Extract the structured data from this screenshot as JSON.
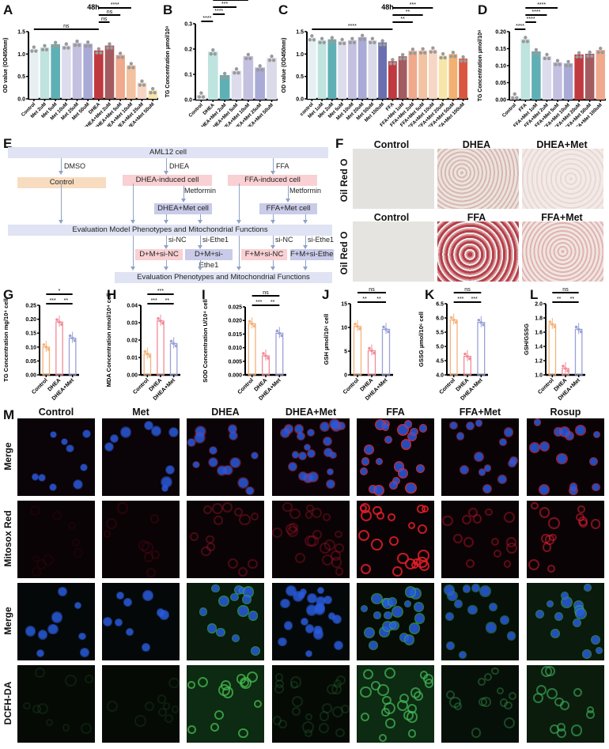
{
  "panels": {
    "A": "A",
    "B": "B",
    "C": "C",
    "D": "D",
    "E": "E",
    "F": "F",
    "G": "G",
    "H": "H",
    "I": "I",
    "J": "J",
    "K": "K",
    "L": "L",
    "M": "M"
  },
  "chart_data": [
    {
      "id": "A",
      "type": "bar",
      "title": "48h",
      "ylabel": "OD value (OD450nm)",
      "ylim": [
        0,
        1.5
      ],
      "yticks": [
        "0.0",
        "0.5",
        "1.0",
        "1.5"
      ],
      "categories": [
        "Control",
        "Met 2uM",
        "Met 5uM",
        "Met 10uM",
        "Met 25uM",
        "Met 50uM",
        "DHEA",
        "DHEA+Met 2uM",
        "DHEA+Met 5uM",
        "DHEA+Met 10uM",
        "DHEA+Met 25uM",
        "DHEA+Met 50uM"
      ],
      "values": [
        1.12,
        1.15,
        1.22,
        1.19,
        1.25,
        1.23,
        1.08,
        1.19,
        0.98,
        0.75,
        0.36,
        0.19
      ],
      "colors": [
        "#e6f0f3",
        "#bfe3df",
        "#5fb0b4",
        "#dcdcec",
        "#c4c0e0",
        "#a9aad6",
        "#c0393f",
        "#a45b60",
        "#f0a98c",
        "#f3c2a0",
        "#f7d6c6",
        "#f7e6a8"
      ],
      "significance": [
        {
          "from": 0,
          "to": 6,
          "label": "ns"
        },
        {
          "from": 6,
          "to": 7,
          "label": "ns"
        },
        {
          "from": 6,
          "to": 8,
          "label": "ns"
        },
        {
          "from": 6,
          "to": 9,
          "label": "****"
        }
      ]
    },
    {
      "id": "B",
      "type": "bar",
      "title": "",
      "ylabel": "TG Concentration µmol/10⁸",
      "ylim": [
        0,
        0.3
      ],
      "yticks": [
        "0.0",
        "0.1",
        "0.2",
        "0.3"
      ],
      "categories": [
        "Control",
        "DHEA",
        "DHEA+Met 2uM",
        "DHEA+Met 5uM",
        "DHEA+Met 10uM",
        "DHEA+Met 25uM",
        "DHEA+Met 50uM"
      ],
      "values": [
        0.02,
        0.19,
        0.097,
        0.115,
        0.172,
        0.127,
        0.165
      ],
      "colors": [
        "#e8edf2",
        "#bfe3df",
        "#5fb0b4",
        "#dcdcec",
        "#c4c0e0",
        "#a9aad6",
        "#d9dbe8"
      ],
      "significance": [
        {
          "from": 0,
          "to": 1,
          "label": "****"
        },
        {
          "from": 1,
          "to": 2,
          "label": "****"
        },
        {
          "from": 1,
          "to": 3,
          "label": "***"
        },
        {
          "from": 1,
          "to": 4,
          "label": "ns"
        }
      ]
    },
    {
      "id": "C",
      "type": "bar",
      "title": "48h",
      "ylabel": "OD value (OD450nm)",
      "ylim": [
        0,
        1.5
      ],
      "yticks": [
        "0.0",
        "0.5",
        "1.0",
        "1.5"
      ],
      "categories": [
        "control",
        "Met 1uM",
        "Met 2uM",
        "Met 5uM",
        "Met 10uM",
        "Met 20uM",
        "Met 50uM",
        "Met 100uM",
        "FFA",
        "FFA+Met 1uM",
        "FFA+Met 2uM",
        "FFA+Met 5uM",
        "FFA+Met 10uM",
        "FFA+Met 20uM",
        "FFA+Met 50uM",
        "FFA+Met 100uM"
      ],
      "values": [
        1.37,
        1.31,
        1.33,
        1.29,
        1.31,
        1.38,
        1.31,
        1.26,
        0.84,
        0.95,
        1.07,
        1.08,
        1.1,
        0.97,
        1.0,
        0.9
      ],
      "colors": [
        "#e6f0f3",
        "#bfe3df",
        "#5fb0b4",
        "#dcdcec",
        "#c4c0e0",
        "#a9aad6",
        "#d9dbe8",
        "#6a6fb0",
        "#c0393f",
        "#a45b60",
        "#f0a98c",
        "#f3c2a0",
        "#f7d6c6",
        "#f7e6a8",
        "#f3b070",
        "#d9573f"
      ],
      "significance": [
        {
          "from": 0,
          "to": 8,
          "label": "****"
        },
        {
          "from": 8,
          "to": 10,
          "label": "**"
        },
        {
          "from": 8,
          "to": 11,
          "label": "**"
        },
        {
          "from": 8,
          "to": 12,
          "label": "***"
        }
      ]
    },
    {
      "id": "D",
      "type": "bar",
      "title": "",
      "ylabel": "TG Concentration µmol/10⁸",
      "ylim": [
        0,
        0.2
      ],
      "yticks": [
        "0.00",
        "0.05",
        "0.10",
        "0.15",
        "0.20"
      ],
      "categories": [
        "Control",
        "FFA",
        "FFA+Met 1uM",
        "FFA+Met 2uM",
        "FFA+Met 5uM",
        "FFA+Met 10uM",
        "FFA+Met 20uM",
        "FFA+Met 50uM",
        "FFA+Met 100uM"
      ],
      "values": [
        0.012,
        0.178,
        0.142,
        0.128,
        0.11,
        0.107,
        0.133,
        0.135,
        0.146
      ],
      "colors": [
        "#e8edf2",
        "#bfe3df",
        "#5fb0b4",
        "#dcdcec",
        "#c4c0e0",
        "#a9aad6",
        "#c0393f",
        "#a45b60",
        "#f0a98c"
      ],
      "significance": [
        {
          "from": 0,
          "to": 1,
          "label": "****"
        },
        {
          "from": 1,
          "to": 2,
          "label": "****"
        },
        {
          "from": 1,
          "to": 3,
          "label": "****"
        },
        {
          "from": 1,
          "to": 4,
          "label": "****"
        }
      ]
    },
    {
      "id": "G",
      "type": "bar",
      "ylabel": "TG Concentration mg/10⁴ cell",
      "ylim": [
        0,
        0.25
      ],
      "yticks": [
        "0.00",
        "0.05",
        "0.10",
        "0.15",
        "0.20",
        "0.25"
      ],
      "categories": [
        "Control",
        "DHEA",
        "DHEA+Met"
      ],
      "values": [
        0.1,
        0.19,
        0.132
      ],
      "colors": [
        "#f3b27a",
        "#f08c98",
        "#9aa0d8"
      ],
      "significance": [
        {
          "from": 0,
          "to": 1,
          "label": "***"
        },
        {
          "from": 1,
          "to": 2,
          "label": "**"
        },
        {
          "from": 0,
          "to": 2,
          "label": "*"
        }
      ]
    },
    {
      "id": "H",
      "type": "bar",
      "ylabel": "MDA Concentration nmol/10⁴ cell",
      "ylim": [
        0,
        0.04
      ],
      "yticks": [
        "0.00",
        "0.01",
        "0.02",
        "0.03",
        "0.04"
      ],
      "categories": [
        "Control",
        "DHEA",
        "DHEA+Met"
      ],
      "values": [
        0.012,
        0.031,
        0.018
      ],
      "colors": [
        "#f3b27a",
        "#f08c98",
        "#9aa0d8"
      ],
      "significance": [
        {
          "from": 0,
          "to": 1,
          "label": "***"
        },
        {
          "from": 1,
          "to": 2,
          "label": "**"
        },
        {
          "from": 0,
          "to": 2,
          "label": "***"
        }
      ]
    },
    {
      "id": "I",
      "type": "bar",
      "ylabel": "SOD Concentration U/10⁴ cell",
      "ylim": [
        0,
        0.025
      ],
      "yticks": [
        "0.000",
        "0.005",
        "0.010",
        "0.015",
        "0.020",
        "0.025"
      ],
      "categories": [
        "Control",
        "DHEA",
        "DHEA+Met"
      ],
      "values": [
        0.0188,
        0.007,
        0.0153
      ],
      "colors": [
        "#f3b27a",
        "#f08c98",
        "#9aa0d8"
      ],
      "significance": [
        {
          "from": 0,
          "to": 1,
          "label": "***"
        },
        {
          "from": 1,
          "to": 2,
          "label": "**"
        },
        {
          "from": 0,
          "to": 2,
          "label": "ns"
        }
      ]
    },
    {
      "id": "J",
      "type": "bar",
      "ylabel": "GSH µmol/10⁶ cell",
      "ylim": [
        0,
        15
      ],
      "yticks": [
        "0",
        "5",
        "10",
        "15"
      ],
      "categories": [
        "Control",
        "DHEA",
        "DHEA+Met"
      ],
      "values": [
        10.2,
        5.1,
        9.6
      ],
      "colors": [
        "#f3b27a",
        "#f08c98",
        "#9aa0d8"
      ],
      "significance": [
        {
          "from": 0,
          "to": 1,
          "label": "**"
        },
        {
          "from": 1,
          "to": 2,
          "label": "**"
        },
        {
          "from": 0,
          "to": 2,
          "label": "ns"
        }
      ]
    },
    {
      "id": "K",
      "type": "bar",
      "ylabel": "GSSG µmol/10⁶ cell",
      "ylim": [
        4.0,
        6.5
      ],
      "yticks": [
        "4.0",
        "4.5",
        "5.0",
        "5.5",
        "6.0",
        "6.5"
      ],
      "categories": [
        "Control",
        "DHEA",
        "DHEA+Met"
      ],
      "values": [
        5.93,
        4.65,
        5.84
      ],
      "colors": [
        "#f3b27a",
        "#f08c98",
        "#9aa0d8"
      ],
      "significance": [
        {
          "from": 0,
          "to": 1,
          "label": "***"
        },
        {
          "from": 1,
          "to": 2,
          "label": "***"
        },
        {
          "from": 0,
          "to": 2,
          "label": "ns"
        }
      ]
    },
    {
      "id": "L",
      "type": "bar",
      "ylabel": "GSH/GSSG",
      "ylim": [
        1.0,
        2.0
      ],
      "yticks": [
        "1.0",
        "1.2",
        "1.4",
        "1.6",
        "1.8",
        "2.0"
      ],
      "categories": [
        "Control",
        "DHEA",
        "DHEA+Met"
      ],
      "values": [
        1.71,
        1.09,
        1.64
      ],
      "colors": [
        "#f3b27a",
        "#f08c98",
        "#9aa0d8"
      ],
      "significance": [
        {
          "from": 0,
          "to": 1,
          "label": "**"
        },
        {
          "from": 1,
          "to": 2,
          "label": "**"
        },
        {
          "from": 0,
          "to": 2,
          "label": "ns"
        }
      ]
    }
  ],
  "flowchart": {
    "top": "AML12 cell",
    "dmso": "DMSO",
    "dhea": "DHEA",
    "ffa": "FFA",
    "control": "Control",
    "dhea_induced": "DHEA-induced cell",
    "ffa_induced": "FFA-induced cell",
    "metformin1": "Metformin",
    "metformin2": "Metformin",
    "dhea_met": "DHEA+Met cell",
    "ffa_met": "FFA+Met cell",
    "eval1": "Evaluation Model Phenotypes and Mitochondrial Functions",
    "sinc1": "si-NC",
    "siethe1a": "si-Ethe1",
    "sinc2": "si-NC",
    "siethe1b": "si-Ethe1",
    "dmsinc": "D+M+si-NC",
    "dmsiethe": "D+M+si-Ethe1",
    "fmsinc": "F+M+si-NC",
    "fmsiethe": "F+M+si-Ethe1",
    "eval2": "Evaluation Phenotypes and Mitochondrial Functions"
  },
  "oil_red": {
    "row_label": "Oil Red O",
    "top": [
      "Control",
      "DHEA",
      "DHEA+Met"
    ],
    "bottom": [
      "Control",
      "FFA",
      "FFA+Met"
    ]
  },
  "microscopy": {
    "columns": [
      "Control",
      "Met",
      "DHEA",
      "DHEA+Met",
      "FFA",
      "FFA+Met",
      "Rosup"
    ],
    "rows": [
      "Merge",
      "Mitosox Red",
      "Merge",
      "DCFH-DA"
    ]
  }
}
